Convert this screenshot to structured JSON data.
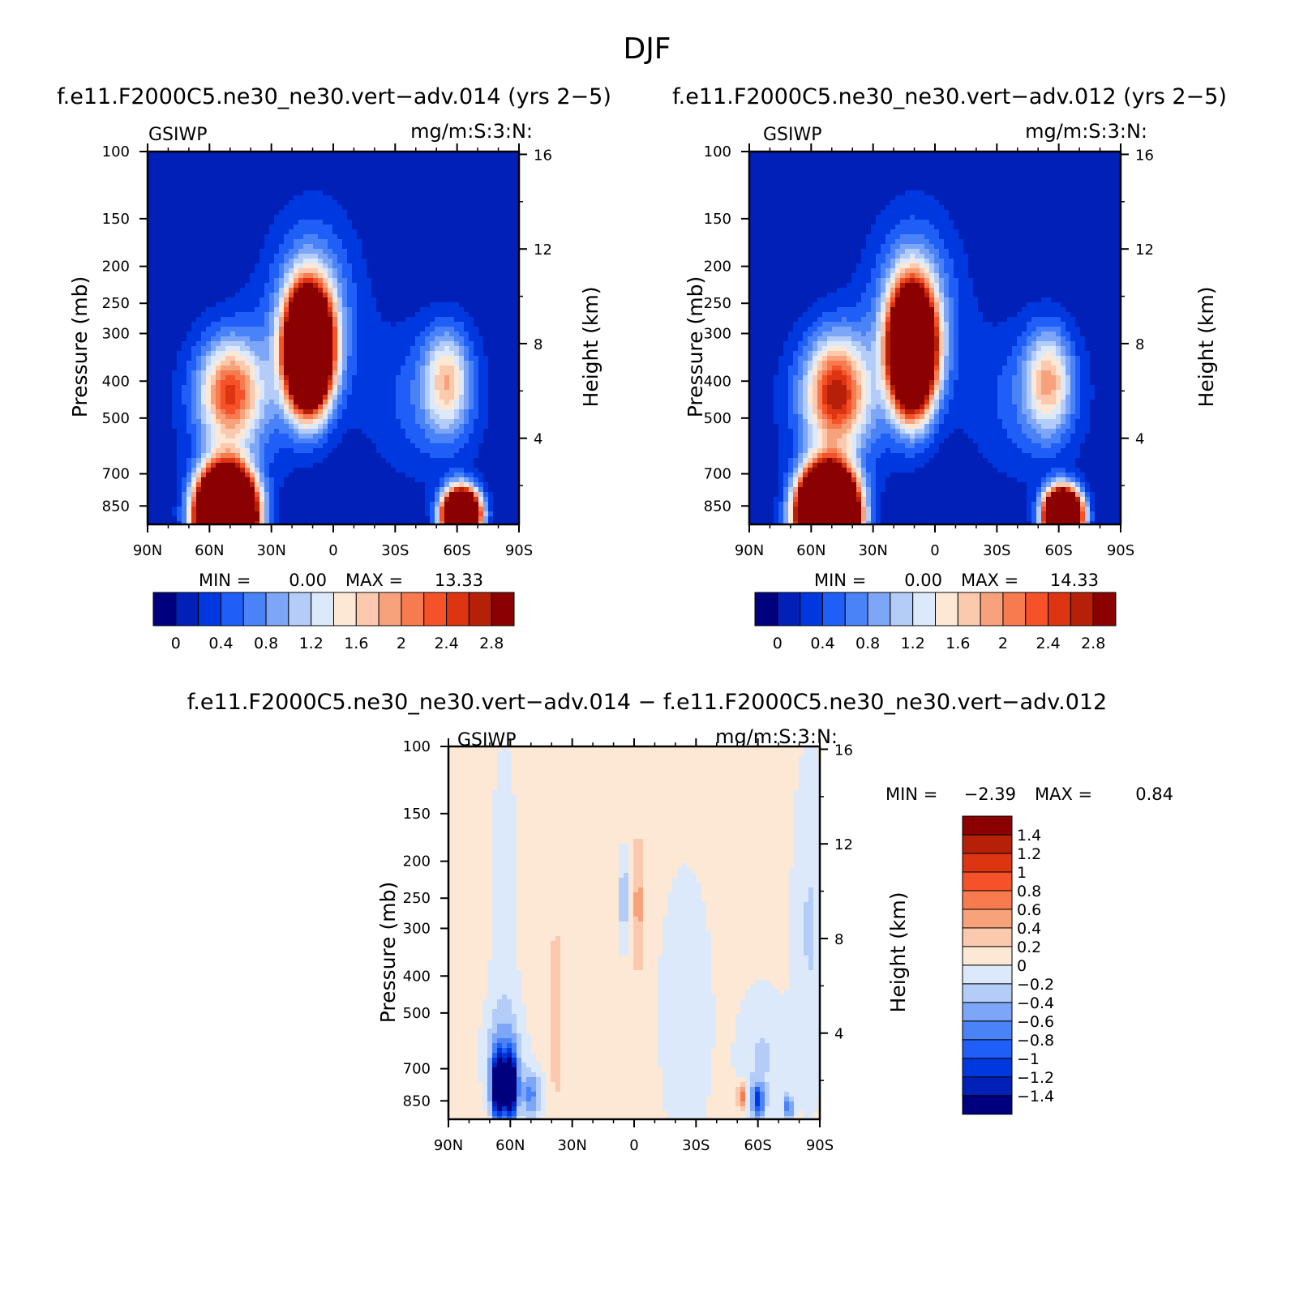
{
  "figure_title": "DJF",
  "chart_data": [
    {
      "type": "heatmap",
      "title": "f.e11.F2000C5.ne30_ne30.vert−adv.014 (yrs 2−5)",
      "left_label": "GSIWP",
      "right_label": "mg/m:S:3:N:",
      "ylabel": "Pressure (mb)",
      "y2label": "Height (km)",
      "x_ticks": [
        "90N",
        "60N",
        "30N",
        "0",
        "30S",
        "60S",
        "90S"
      ],
      "y_ticks": [
        "100",
        "150",
        "200",
        "250",
        "300",
        "400",
        "500",
        "700",
        "850"
      ],
      "y2_ticks": [
        "16",
        "12",
        "8",
        "4"
      ],
      "min_label": "MIN =",
      "min_value": "0.00",
      "max_label": "MAX =",
      "max_value": "13.33",
      "colorbar_labels": [
        "0",
        "0.4",
        "0.8",
        "1.2",
        "1.6",
        "2",
        "2.4",
        "2.8"
      ],
      "colorbar_colors": [
        "#00007f",
        "#0020b8",
        "#0038e0",
        "#1f5ff8",
        "#4a82f8",
        "#7da6f8",
        "#b4cdf8",
        "#dce9fb",
        "#fde8d6",
        "#fbc9ad",
        "#f8a27c",
        "#f87a4f",
        "#f5522a",
        "#dd3412",
        "#b72008",
        "#8b0000"
      ],
      "levels": [
        0,
        0.2,
        0.4,
        0.6,
        0.8,
        1,
        1.2,
        1.4,
        1.6,
        1.8,
        2,
        2.2,
        2.4,
        2.6,
        2.8
      ],
      "blobs": [
        {
          "lat": 12,
          "p": 330,
          "w": 10,
          "h": 0.32,
          "amp": 9.0
        },
        {
          "lat": 52,
          "p": 900,
          "w": 12,
          "h": 0.24,
          "amp": 13.3
        },
        {
          "lat": 50,
          "p": 430,
          "w": 14,
          "h": 0.3,
          "amp": 1.9
        },
        {
          "lat": -62,
          "p": 900,
          "w": 8,
          "h": 0.14,
          "amp": 9.0
        },
        {
          "lat": -55,
          "p": 400,
          "w": 11,
          "h": 0.3,
          "amp": 1.4
        },
        {
          "lat": 10,
          "p": 250,
          "w": 22,
          "h": 0.55,
          "amp": 0.9
        },
        {
          "lat": 45,
          "p": 450,
          "w": 30,
          "h": 0.5,
          "amp": 0.6
        },
        {
          "lat": -45,
          "p": 450,
          "w": 30,
          "h": 0.5,
          "amp": 0.5
        }
      ]
    },
    {
      "type": "heatmap",
      "title": "f.e11.F2000C5.ne30_ne30.vert−adv.012 (yrs 2−5)",
      "left_label": "GSIWP",
      "right_label": "mg/m:S:3:N:",
      "ylabel": "Pressure (mb)",
      "y2label": "Height (km)",
      "x_ticks": [
        "90N",
        "60N",
        "30N",
        "0",
        "30S",
        "60S",
        "90S"
      ],
      "y_ticks": [
        "100",
        "150",
        "200",
        "250",
        "300",
        "400",
        "500",
        "700",
        "850"
      ],
      "y2_ticks": [
        "16",
        "12",
        "8",
        "4"
      ],
      "min_label": "MIN =",
      "min_value": "0.00",
      "max_label": "MAX =",
      "max_value": "14.33",
      "colorbar_labels": [
        "0",
        "0.4",
        "0.8",
        "1.2",
        "1.6",
        "2",
        "2.4",
        "2.8"
      ],
      "colorbar_colors": [
        "#00007f",
        "#0020b8",
        "#0038e0",
        "#1f5ff8",
        "#4a82f8",
        "#7da6f8",
        "#b4cdf8",
        "#dce9fb",
        "#fde8d6",
        "#fbc9ad",
        "#f8a27c",
        "#f87a4f",
        "#f5522a",
        "#dd3412",
        "#b72008",
        "#8b0000"
      ],
      "levels": [
        0,
        0.2,
        0.4,
        0.6,
        0.8,
        1,
        1.2,
        1.4,
        1.6,
        1.8,
        2,
        2.2,
        2.4,
        2.6,
        2.8
      ],
      "blobs": [
        {
          "lat": 11,
          "p": 330,
          "w": 10,
          "h": 0.34,
          "amp": 8.0
        },
        {
          "lat": 52,
          "p": 900,
          "w": 12,
          "h": 0.24,
          "amp": 14.3
        },
        {
          "lat": 48,
          "p": 430,
          "w": 14,
          "h": 0.32,
          "amp": 2.2
        },
        {
          "lat": -62,
          "p": 900,
          "w": 8,
          "h": 0.14,
          "amp": 9.5
        },
        {
          "lat": -55,
          "p": 400,
          "w": 11,
          "h": 0.3,
          "amp": 1.5
        },
        {
          "lat": 10,
          "p": 250,
          "w": 22,
          "h": 0.55,
          "amp": 0.9
        },
        {
          "lat": 45,
          "p": 450,
          "w": 30,
          "h": 0.5,
          "amp": 0.6
        },
        {
          "lat": -45,
          "p": 450,
          "w": 30,
          "h": 0.5,
          "amp": 0.5
        }
      ]
    },
    {
      "type": "heatmap",
      "title": "f.e11.F2000C5.ne30_ne30.vert−adv.014 − f.e11.F2000C5.ne30_ne30.vert−adv.012",
      "left_label": "GSIWP",
      "right_label": "mg/m:S:3:N:",
      "ylabel": "Pressure (mb)",
      "y2label": "Height (km)",
      "x_ticks": [
        "90N",
        "60N",
        "30N",
        "0",
        "30S",
        "60S",
        "90S"
      ],
      "y_ticks": [
        "100",
        "150",
        "200",
        "250",
        "300",
        "400",
        "500",
        "700",
        "850"
      ],
      "y2_ticks": [
        "16",
        "12",
        "8",
        "4"
      ],
      "min_label": "MIN =",
      "min_value": "−2.39",
      "max_label": "MAX =",
      "max_value": "0.84",
      "colorbar_labels": [
        "1.4",
        "1.2",
        "1",
        "0.8",
        "0.6",
        "0.4",
        "0.2",
        "0",
        "−0.2",
        "−0.4",
        "−0.6",
        "−0.8",
        "−1",
        "−1.2",
        "−1.4"
      ],
      "colorbar_colors": [
        "#8b0000",
        "#b72008",
        "#dd3412",
        "#f5522a",
        "#f87a4f",
        "#f8a27c",
        "#fbc9ad",
        "#fde8d6",
        "#dce9fb",
        "#b4cdf8",
        "#7da6f8",
        "#4a82f8",
        "#1f5ff8",
        "#0038e0",
        "#0020b8",
        "#00007f"
      ],
      "levels": [
        -1.4,
        -1.2,
        -1,
        -0.8,
        -0.6,
        -0.4,
        -0.2,
        0,
        0.2,
        0.4,
        0.6,
        0.8,
        1,
        1.2,
        1.4
      ],
      "base": 0.08,
      "blobs": [
        {
          "lat": 66,
          "p": 780,
          "w": 3,
          "h": 0.18,
          "amp": -2.3
        },
        {
          "lat": 60,
          "p": 780,
          "w": 3,
          "h": 0.18,
          "amp": -2.4
        },
        {
          "lat": 63,
          "p": 650,
          "w": 9,
          "h": 0.3,
          "amp": -0.5
        },
        {
          "lat": 50,
          "p": 820,
          "w": 5,
          "h": 0.15,
          "amp": -0.7
        },
        {
          "lat": 63,
          "p": 300,
          "w": 7,
          "h": 1.2,
          "amp": -0.2
        },
        {
          "lat": 5,
          "p": 250,
          "w": 2.5,
          "h": 0.28,
          "amp": -0.45
        },
        {
          "lat": -2,
          "p": 260,
          "w": 3,
          "h": 0.4,
          "amp": 0.4
        },
        {
          "lat": -60,
          "p": 850,
          "w": 3,
          "h": 0.1,
          "amp": -1.1
        },
        {
          "lat": -75,
          "p": 880,
          "w": 2,
          "h": 0.07,
          "amp": -0.9
        },
        {
          "lat": -52,
          "p": 830,
          "w": 2,
          "h": 0.08,
          "amp": 0.75
        },
        {
          "lat": -85,
          "p": 300,
          "w": 8,
          "h": 1.0,
          "amp": -0.3
        },
        {
          "lat": -25,
          "p": 500,
          "w": 12,
          "h": 0.8,
          "amp": -0.28
        },
        {
          "lat": 38,
          "p": 500,
          "w": 3,
          "h": 0.6,
          "amp": 0.25
        },
        {
          "lat": -62,
          "p": 650,
          "w": 12,
          "h": 0.4,
          "amp": -0.3
        }
      ]
    }
  ]
}
